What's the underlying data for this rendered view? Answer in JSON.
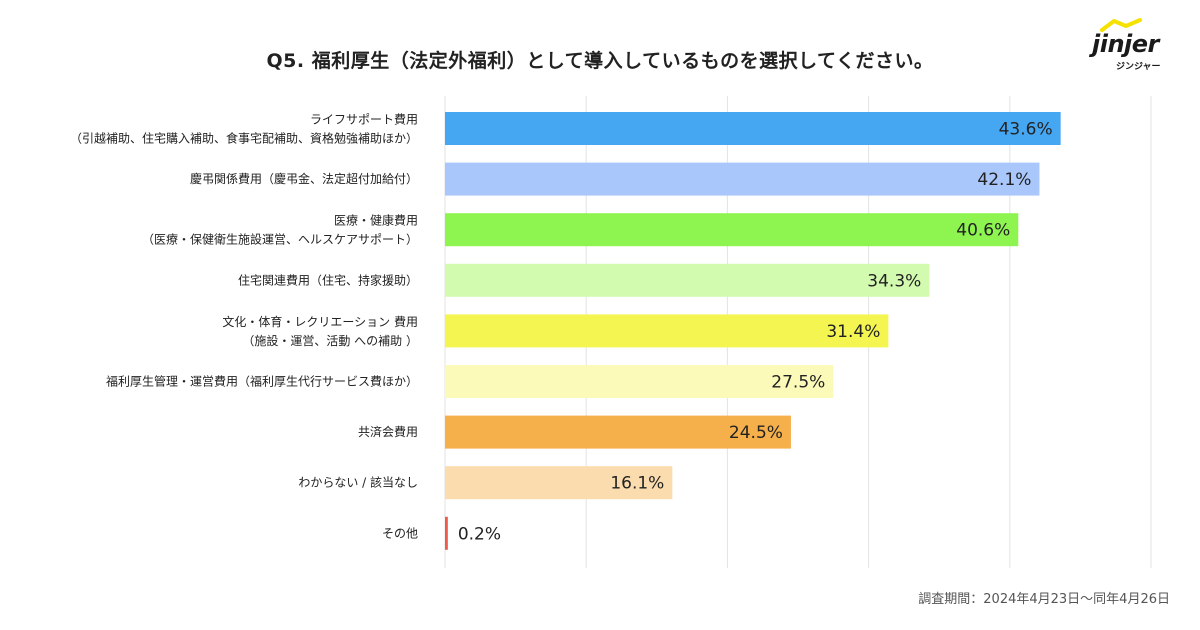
{
  "title": "Q5. 福利厚生（法定外福利）として導入しているものを選択してください。",
  "logo": {
    "name": "jinjer",
    "sub": "ジンジャー"
  },
  "footnote": "調査期間：2024年4月23日〜同年4月26日",
  "chart_data": {
    "type": "bar",
    "orientation": "horizontal",
    "title": "Q5. 福利厚生（法定外福利）として導入しているものを選択してください。",
    "xlim": [
      0,
      50
    ],
    "grid": true,
    "value_suffix": "%",
    "categories": [
      [
        "ライフサポート費用",
        "（引越補助、住宅購入補助、食事宅配補助、資格勉強補助ほか）"
      ],
      [
        "慶弔関係費用（慶弔金、法定超付加給付）"
      ],
      [
        "医療・健康費用",
        "（医療・保健衛生施設運営、ヘルスケアサポート）"
      ],
      [
        "住宅関連費用（住宅、持家援助）"
      ],
      [
        "文化・体育・レクリエーション 費用",
        "（施設・運営、活動 への補助 ）"
      ],
      [
        "福利厚生管理・運営費用（福利厚生代行サービス費ほか）"
      ],
      [
        "共済会費用"
      ],
      [
        "わからない / 該当なし"
      ],
      [
        "その他"
      ]
    ],
    "values": [
      43.6,
      42.1,
      40.6,
      34.3,
      31.4,
      27.5,
      24.5,
      16.1,
      0.2
    ],
    "value_labels": [
      "43.6%",
      "42.1%",
      "40.6%",
      "34.3%",
      "31.4%",
      "27.5%",
      "24.5%",
      "16.1%",
      "0.2%"
    ],
    "colors": [
      "#45a6f2",
      "#a9c7fb",
      "#8ef550",
      "#d2fbb0",
      "#f5f551",
      "#fbfab9",
      "#f5af4b",
      "#fadcae",
      "#f05a4a"
    ]
  }
}
